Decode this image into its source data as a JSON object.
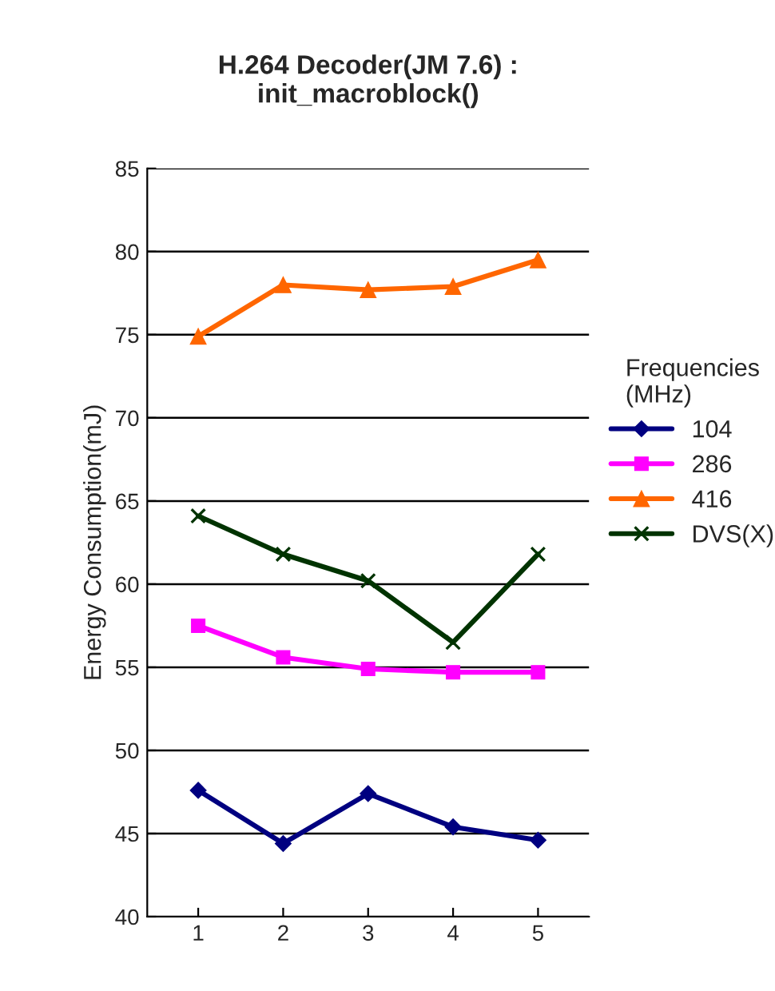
{
  "chart_data": {
    "type": "line",
    "title": "H.264 Decoder(JM 7.6) :\ninit_macroblock()",
    "ylabel": "Energy Consumption(mJ)",
    "legend_title": "Frequencies\n(MHz)",
    "categories": [
      "1",
      "2",
      "3",
      "4",
      "5"
    ],
    "ylim": [
      40,
      85
    ],
    "yticks": [
      40,
      45,
      50,
      55,
      60,
      65,
      70,
      75,
      80,
      85
    ],
    "grid": "y",
    "legend": "right",
    "series": [
      {
        "name": "104",
        "color": "#000080",
        "marker": "diamond",
        "values": [
          47.6,
          44.4,
          47.4,
          45.4,
          44.6
        ]
      },
      {
        "name": "286",
        "color": "#ff00ff",
        "marker": "square",
        "values": [
          57.5,
          55.6,
          54.9,
          54.7,
          54.7
        ]
      },
      {
        "name": "416",
        "color": "#ff6600",
        "marker": "triangle",
        "values": [
          74.9,
          78.0,
          77.7,
          77.9,
          79.5
        ]
      },
      {
        "name": "DVS(X)",
        "color": "#003300",
        "marker": "cross",
        "values": [
          64.1,
          61.8,
          60.2,
          56.5,
          61.8
        ]
      }
    ]
  }
}
